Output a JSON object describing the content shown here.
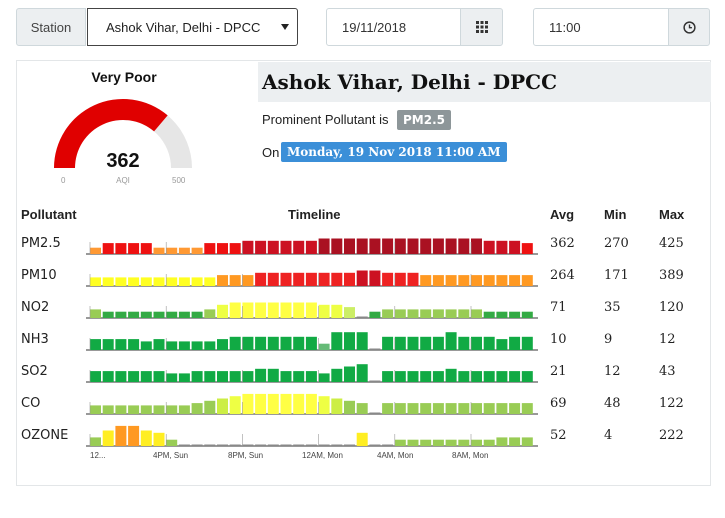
{
  "controls": {
    "station_label": "Station",
    "station_value": "Ashok Vihar, Delhi - DPCC",
    "date_value": "19/11/2018",
    "time_value": "11:00"
  },
  "aqi": {
    "status": "Very Poor",
    "value": "362",
    "unit": "AQI",
    "min": "0",
    "max": "500",
    "gauge_fraction": 0.724,
    "gauge_color": "#e00000",
    "track_color": "#e6e6e6"
  },
  "station": {
    "name": "Ashok Vihar, Delhi - DPCC",
    "prominent_label": "Prominent Pollutant is",
    "prominent_pollutant": "PM2.5",
    "on_label": "On",
    "datetime": "Monday, 19 Nov 2018 11:00 AM"
  },
  "table": {
    "headers": {
      "pollutant": "Pollutant",
      "timeline": "Timeline",
      "avg": "Avg",
      "min": "Min",
      "max": "Max"
    },
    "rows": [
      {
        "name": "PM2.5",
        "avg": "362",
        "min": "270",
        "max": "425",
        "levels": [
          1,
          3,
          3,
          3,
          3,
          1,
          1,
          1,
          1,
          3,
          3,
          3,
          4,
          4,
          4,
          4,
          4,
          4,
          5,
          5,
          5,
          5,
          5,
          5,
          5,
          5,
          5,
          5,
          5,
          5,
          5,
          4,
          4,
          4,
          3
        ],
        "colors": {
          "1": "#ff9933",
          "3": "#ee1111",
          "4": "#cc1122",
          "5": "#aa1122"
        }
      },
      {
        "name": "PM10",
        "avg": "264",
        "min": "171",
        "max": "389",
        "levels": [
          2,
          2,
          2,
          2,
          2,
          2,
          2,
          2,
          2,
          2,
          3,
          3,
          3,
          4,
          4,
          4,
          4,
          4,
          4,
          4,
          4,
          5,
          5,
          4,
          4,
          4,
          3,
          3,
          3,
          3,
          3,
          3,
          3,
          3,
          3
        ],
        "colors": {
          "2": "#ffff22",
          "3": "#ff9922",
          "4": "#ee2222",
          "5": "#cc1122"
        }
      },
      {
        "name": "NO2",
        "avg": "71",
        "min": "35",
        "max": "120",
        "levels": [
          2,
          1,
          1,
          1,
          1,
          1,
          1,
          1,
          1,
          2,
          4,
          5,
          5,
          5,
          5,
          5,
          5,
          5,
          4,
          4,
          3,
          0,
          1,
          2,
          2,
          2,
          2,
          2,
          2,
          2,
          2,
          1,
          1,
          1,
          1
        ],
        "colors": {
          "1": "#33aa44",
          "2": "#99cc55",
          "3": "#ccee66",
          "4": "#eeff44",
          "5": "#ffff44"
        }
      },
      {
        "name": "NH3",
        "avg": "10",
        "min": "9",
        "max": "12",
        "levels": [
          3,
          3,
          3,
          3,
          2,
          3,
          2,
          2,
          2,
          2,
          3,
          4,
          4,
          4,
          4,
          4,
          4,
          4,
          1,
          6,
          6,
          6,
          0,
          4,
          4,
          4,
          4,
          4,
          6,
          4,
          4,
          4,
          3,
          4,
          4
        ],
        "colors": {
          "1": "#66bb77",
          "2": "#11aa44",
          "3": "#11aa44",
          "4": "#11aa44",
          "6": "#11aa44"
        }
      },
      {
        "name": "SO2",
        "avg": "21",
        "min": "12",
        "max": "43",
        "levels": [
          3,
          3,
          3,
          3,
          3,
          3,
          2,
          2,
          3,
          3,
          3,
          3,
          3,
          4,
          4,
          3,
          3,
          3,
          2,
          4,
          5,
          6,
          0,
          3,
          3,
          3,
          3,
          3,
          4,
          3,
          3,
          3,
          3,
          3,
          3
        ],
        "colors": {
          "2": "#11aa44",
          "3": "#11aa44",
          "4": "#11aa44",
          "5": "#11aa44",
          "6": "#11aa44"
        }
      },
      {
        "name": "CO",
        "avg": "69",
        "min": "48",
        "max": "122",
        "levels": [
          2,
          2,
          2,
          2,
          2,
          2,
          2,
          2,
          3,
          4,
          5,
          6,
          7,
          7,
          7,
          7,
          7,
          7,
          6,
          5,
          4,
          3,
          0,
          3,
          3,
          3,
          3,
          3,
          3,
          3,
          3,
          3,
          3,
          3,
          3
        ],
        "colors": {
          "2": "#99cc55",
          "3": "#99cc55",
          "4": "#99cc55",
          "5": "#ccee44",
          "6": "#eeff44",
          "7": "#ffff44"
        }
      },
      {
        "name": "OZONE",
        "avg": "52",
        "min": "4",
        "max": "222",
        "levels": [
          2,
          5,
          7,
          7,
          5,
          4,
          1,
          0,
          0,
          0,
          0,
          0,
          0,
          0,
          0,
          0,
          0,
          0,
          0,
          0,
          0,
          4,
          0,
          0,
          1,
          1,
          1,
          1,
          1,
          1,
          1,
          1,
          2,
          2,
          2
        ],
        "colors": {
          "1": "#99cc55",
          "2": "#99cc55",
          "4": "#ffee22",
          "5": "#ffee22",
          "7": "#ff9922"
        }
      }
    ]
  },
  "timeline_ticks": [
    "12...",
    "4PM, Sun",
    "8PM, Sun",
    "12AM, Mon",
    "4AM, Mon",
    "8AM, Mon"
  ]
}
